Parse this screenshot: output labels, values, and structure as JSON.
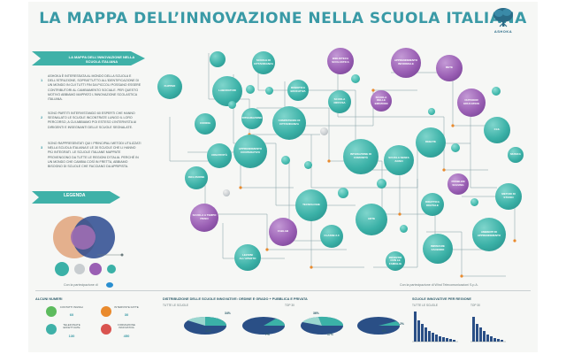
{
  "title": "LA MAPPA DELL’INNOVAZIONE NELLA SCUOLA ITALIANA",
  "logo": {
    "text": "ASHOKA",
    "icon": "tree-icon"
  },
  "intro": {
    "banner": "LA MAPPA DELL’INNOVAZIONE NELLA SCUOLA ITALIANA",
    "paragraphs": [
      {
        "num": "1",
        "text": "ASHOKA È INTERESSATA AL MONDO DELLA SCUOLA E DELL’ISTRUZIONE, SOPRATTUTTO ALL’IDENTIFICAZIONE DI UN MONDO IN CUI TUTTI FIN DA PICCOLI POSSANO ESSERE CONTRIBUTORI AL CAMBIAMENTO SOCIALE. PER QUESTO MOTIVO ABBIAMO MAPPATO L’INNOVAZIONE SCOLASTICA ITALIANA."
      },
      {
        "num": "2",
        "text": "SONO PARTITI INTERVISTANDO 60 ESPERTI CHE HANNO SEGNALATO LE SCUOLE INCONTRATE LUNGO IL LORO PERCORSO, A CUI ABBIAMO POI ESTESO L’INTERVISTA AI DIRIGENTI E INSEGNANTI DELLE SCUOLE SEGNALATE."
      },
      {
        "num": "3",
        "text": "SONO RAPPRESENTATI QUI I PRINCIPALI METODI UTILIZZATI NELLA SCUOLA ITALIANA E LE 30 SCUOLE CHE LI HANNO PIÙ INTEGRATI. LE SCUOLE ITALIANE MAPPATE PROVENGONO DA TUTTE LE REGIONI D’ITALIA. PERCHÉ IN UN MONDO CHE CAMBIA COSÌ IN FRETTA, ABBIAMO BISOGNO DI SCUOLE CHE FACCIANO DA APRIPISTA."
      }
    ],
    "legend_title": "LEGENDA",
    "sponsor_left": "Con la partecipazione di",
    "sponsor_right": "Con la partecipazione di Wind Telecomunicazioni S.p.A."
  },
  "map_nodes": [
    {
      "label": "",
      "kind": "teal"
    },
    {
      "label": "SCUOLE DI CITTADINANZA",
      "kind": "teal"
    },
    {
      "label": "BIBLIOTECA SCOLASTICA",
      "kind": "purple"
    },
    {
      "label": "APPRENDIMENTO INFORMALE",
      "kind": "purple"
    },
    {
      "label": "RETE",
      "kind": "purple"
    },
    {
      "label": "FLIPPED",
      "kind": "teal"
    },
    {
      "label": "LABORATORI",
      "kind": "teal"
    },
    {
      "label": "COMPETENZE DI CITTADINANZA",
      "kind": "teal"
    },
    {
      "label": "SCUOLA DIFFUSA",
      "kind": "teal"
    },
    {
      "label": "OUTDOOR EDUCATION",
      "kind": "purple"
    },
    {
      "label": "DEBATE",
      "kind": "teal"
    },
    {
      "label": "CLIL",
      "kind": "teal"
    },
    {
      "label": "CODING",
      "kind": "teal"
    },
    {
      "label": "INTEGRAZIONE",
      "kind": "teal"
    },
    {
      "label": "APPRENDIMENTO COOPERATIVO",
      "kind": "teal"
    },
    {
      "label": "CREATIVITÀ",
      "kind": "teal"
    },
    {
      "label": "INTERAZIONE DI COMUNITÀ",
      "kind": "teal"
    },
    {
      "label": "SCUOLA SENZA ZAINO",
      "kind": "teal"
    },
    {
      "label": "INCLUSIONE",
      "kind": "teal"
    },
    {
      "label": "METODI DI STUDIO",
      "kind": "teal"
    },
    {
      "label": "ROBOTICA EDUCATIVA",
      "kind": "teal"
    },
    {
      "label": "TECNOLOGIE",
      "kind": "teal"
    },
    {
      "label": "ARTE",
      "kind": "teal"
    },
    {
      "label": "IMPARARE FACENDO",
      "kind": "teal"
    },
    {
      "label": "AMBIENTI DI APPRENDIMENTO",
      "kind": "teal"
    },
    {
      "label": "SCUOLA A TEMPO PIENO",
      "kind": "purple"
    },
    {
      "label": "FABLAB",
      "kind": "purple"
    },
    {
      "label": "CLASSE 2.0",
      "kind": "teal"
    },
    {
      "label": "LEZIONI ALL’APERTO",
      "kind": "teal"
    },
    {
      "label": "DIDATTICA DIGITALE",
      "kind": "teal"
    },
    {
      "label": "MUSICA",
      "kind": "teal"
    },
    {
      "label": "PROBLEM SOLVING",
      "kind": "purple"
    },
    {
      "label": "SCUOLA DELLE EMOZIONI",
      "kind": "purple"
    },
    {
      "label": "INCONTRI CON LE FAMIGLIE",
      "kind": "teal"
    }
  ],
  "stats": {
    "facts_title": "ALCUNI NUMERI",
    "facts": [
      {
        "label": "CONTATTI INIZIALI",
        "value": "60",
        "icon": "chat-icon",
        "color": "#5dbb5e"
      },
      {
        "label": "INTERVISTE FATTE",
        "value": "30",
        "icon": "person-icon",
        "color": "#e98a2d"
      },
      {
        "label": "TELEFONATE EFFETTUATE",
        "value": "130",
        "icon": "phone-icon",
        "color": "#3fb1a8"
      },
      {
        "label": "FORMAZIONE INNOVATIVA",
        "value": "450",
        "icon": "graduation-icon",
        "color": "#d9534f"
      }
    ],
    "distribution_title": "DISTRIBUZIONE DELLE SCUOLE INNOVATIVE: ORDINE E GRADO + PUBBLICA E PRIVATA",
    "distribution_sub": "TUTTE LE SCUOLE",
    "pies": [
      {
        "sub": "",
        "pcts": [
          "34%",
          "12%"
        ]
      },
      {
        "sub": "",
        "pcts": [
          "7%"
        ]
      },
      {
        "sub": "TOP 30",
        "pcts": [
          "36%",
          "17%"
        ]
      },
      {
        "sub": "",
        "pcts": [
          "2%",
          "6%"
        ]
      }
    ],
    "region_title": "SCUOLE INNOVATIVE PER REGIONE",
    "region_sub_all": "TUTTE LE SCUOLE",
    "region_sub_top": "TOP 30"
  },
  "colors": {
    "teal": "#3bb1a7",
    "purple": "#9a5fb4",
    "title": "#3a9aa6",
    "navy": "#2a4f86"
  }
}
